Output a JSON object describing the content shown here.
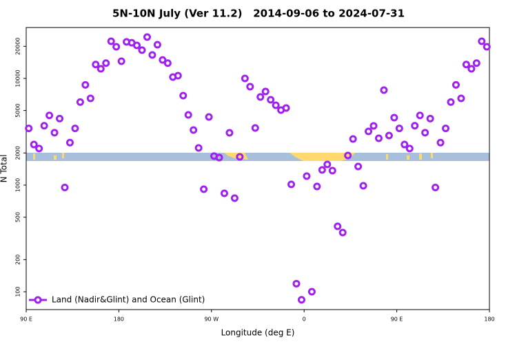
{
  "chart_data": {
    "type": "scatter",
    "title": "5N-10N July (Ver 11.2)   2014-09-06 to 2024-07-31",
    "x_label": "Longitude (deg E)",
    "y_label": "N Total",
    "log_y": true,
    "legend": "bottom-left",
    "xlim": [
      0,
      450
    ],
    "xticks": [
      {
        "value": 0,
        "label": "90 E"
      },
      {
        "value": 90,
        "label": "180"
      },
      {
        "value": 180,
        "label": "90 W"
      },
      {
        "value": 270,
        "label": "0"
      },
      {
        "value": 360,
        "label": "90 E"
      },
      {
        "value": 450,
        "label": "180"
      }
    ],
    "ylim": [
      68,
      30000
    ],
    "yticks": [
      100,
      200,
      500,
      1000,
      2000,
      5000,
      10000,
      20000
    ],
    "series": [
      {
        "name": "Land (Nadir&Glint) and Ocean (Glint)",
        "color": "#a020f0",
        "x": [
          2.5,
          7.5,
          12.5,
          17.5,
          22.5,
          27.5,
          32.5,
          37.5,
          42.5,
          47.5,
          52.5,
          57.5,
          62.5,
          67.5,
          72.5,
          77.5,
          82.5,
          87.5,
          92.5,
          97.5,
          102.5,
          107.5,
          112.5,
          117.5,
          122.5,
          127.5,
          132.5,
          137.5,
          142.5,
          147.5,
          152.5,
          157.5,
          162.5,
          167.5,
          172.5,
          177.5,
          182.5,
          187.5,
          192.5,
          197.5,
          202.5,
          207.5,
          212.5,
          217.5,
          222.5,
          227.5,
          232.5,
          237.5,
          242.5,
          247.5,
          252.5,
          257.5,
          262.5,
          267.5,
          272.5,
          277.5,
          282.5,
          287.5,
          292.5,
          297.5,
          302.5,
          307.5,
          312.5,
          317.5,
          322.5,
          327.5,
          332.5,
          337.5,
          342.5,
          347.5,
          352.5,
          357.5,
          362.5,
          367.5,
          372.5,
          377.5,
          382.5,
          387.5,
          392.5,
          397.5,
          402.5,
          407.5,
          412.5,
          417.5,
          422.5,
          427.5,
          432.5,
          437.5,
          442.5,
          447.5
        ],
        "values": [
          3400,
          2400,
          2200,
          3600,
          4500,
          3100,
          4200,
          950,
          2500,
          3400,
          6000,
          8700,
          6500,
          13500,
          12300,
          13900,
          22300,
          19800,
          14500,
          22000,
          21600,
          20400,
          18400,
          24400,
          16600,
          20700,
          14900,
          13900,
          10300,
          10600,
          6900,
          4550,
          3280,
          2230,
          915,
          4350,
          1870,
          1810,
          837,
          3090,
          754,
          1840,
          10000,
          8370,
          3430,
          6700,
          7540,
          6310,
          5600,
          5050,
          5280,
          1015,
          119,
          84,
          1213,
          100,
          970,
          1387,
          1562,
          1366,
          410,
          359,
          1894,
          2706,
          1493,
          985,
          3186,
          3590,
          2747,
          7770,
          2915,
          4290,
          3400,
          2400,
          2200,
          3600,
          4500,
          3100,
          4200,
          950,
          2500,
          3400,
          6000,
          8700,
          6500,
          13500,
          12300,
          13900,
          22300,
          19800
        ]
      }
    ]
  }
}
